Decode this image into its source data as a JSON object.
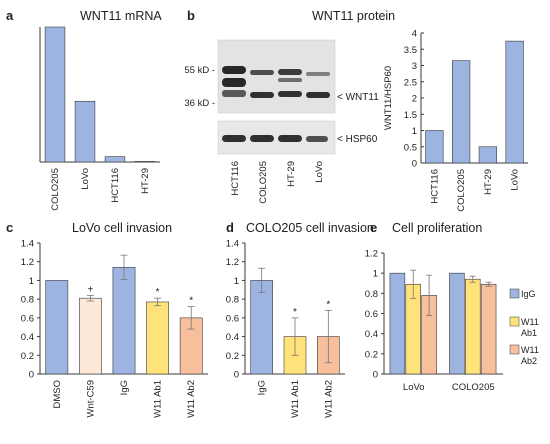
{
  "figure": {
    "panel_a": {
      "letter": "a",
      "chart_title": "WNT11 mRNA"
    },
    "panel_b": {
      "letter": "b",
      "heading": "WNT11 protein",
      "marker_55": "55 kD -",
      "marker_36": "36 kD -",
      "band_label_wnt11": "< WNT11",
      "band_label_hsp60": "< HSP60",
      "blot_lanes": [
        "HCT116",
        "COLO205",
        "HT-29",
        "LoVo"
      ]
    },
    "panel_c": {
      "letter": "c",
      "chart_title": "LoVo cell invasion"
    },
    "panel_d": {
      "letter": "d",
      "chart_title": "COLO205 cell invasion"
    },
    "panel_e": {
      "letter": "e",
      "chart_title": "Cell proliferation"
    }
  },
  "colors": {
    "blue": "#9db4e0",
    "light_peach": "#fde9d9",
    "yellow": "#ffe37a",
    "orange": "#f7bf9b",
    "stroke": "#3a3a3a"
  },
  "chart_data": [
    {
      "id": "a",
      "type": "bar",
      "title": "WNT11 mRNA",
      "categories": [
        "COLO205",
        "LoVo",
        "HCT116",
        "HT-29"
      ],
      "values": [
        1.0,
        0.45,
        0.04,
        0.005
      ],
      "ylim": [
        0,
        1
      ]
    },
    {
      "id": "b",
      "type": "bar",
      "ylabel": "WNT11/HSP60",
      "categories": [
        "HCT116",
        "COLO205",
        "HT-29",
        "LoVo"
      ],
      "values": [
        1.0,
        3.15,
        0.5,
        3.75
      ],
      "ylim": [
        0,
        4
      ],
      "yticks": [
        0,
        0.5,
        1,
        1.5,
        2,
        2.5,
        3,
        3.5,
        4
      ]
    },
    {
      "id": "c",
      "type": "bar",
      "title": "LoVo cell invasion",
      "categories": [
        "DMSO",
        "Wnt-C59",
        "IgG",
        "W11 Ab1",
        "W11 Ab2"
      ],
      "values": [
        1.0,
        0.81,
        1.14,
        0.77,
        0.6
      ],
      "errors": [
        0,
        0.03,
        0.13,
        0.04,
        0.12
      ],
      "markers": [
        "",
        "+",
        "",
        "*",
        "*"
      ],
      "colors": [
        "#9db4e0",
        "#fde9d9",
        "#9db4e0",
        "#ffe37a",
        "#f7bf9b"
      ],
      "ylim": [
        0,
        1.4
      ],
      "yticks": [
        0,
        0.2,
        0.4,
        0.6,
        0.8,
        1,
        1.2,
        1.4
      ]
    },
    {
      "id": "d",
      "type": "bar",
      "title": "COLO205 cell invasion",
      "categories": [
        "IgG",
        "W11 Ab1",
        "W11 Ab2"
      ],
      "values": [
        1.0,
        0.4,
        0.4
      ],
      "errors": [
        0.13,
        0.2,
        0.28
      ],
      "markers": [
        "",
        "*",
        "*"
      ],
      "colors": [
        "#9db4e0",
        "#ffe37a",
        "#f7bf9b"
      ],
      "ylim": [
        0,
        1.4
      ],
      "yticks": [
        0,
        0.2,
        0.4,
        0.6,
        0.8,
        1,
        1.2,
        1.4
      ]
    },
    {
      "id": "e",
      "type": "bar",
      "title": "Cell proliferation",
      "categories": [
        "LoVo",
        "COLO205"
      ],
      "series": [
        {
          "name": "IgG",
          "values": [
            1.0,
            1.0
          ],
          "errors": [
            0,
            0
          ],
          "color": "#9db4e0"
        },
        {
          "name": "W11 Ab1",
          "values": [
            0.89,
            0.94
          ],
          "errors": [
            0.14,
            0.03
          ],
          "color": "#ffe37a"
        },
        {
          "name": "W11 Ab2",
          "values": [
            0.78,
            0.89
          ],
          "errors": [
            0.2,
            0.02
          ],
          "color": "#f7bf9b"
        }
      ],
      "ylim": [
        0,
        1.2
      ],
      "yticks": [
        0,
        0.2,
        0.4,
        0.6,
        0.8,
        1,
        1.2
      ],
      "legend": "right"
    }
  ]
}
